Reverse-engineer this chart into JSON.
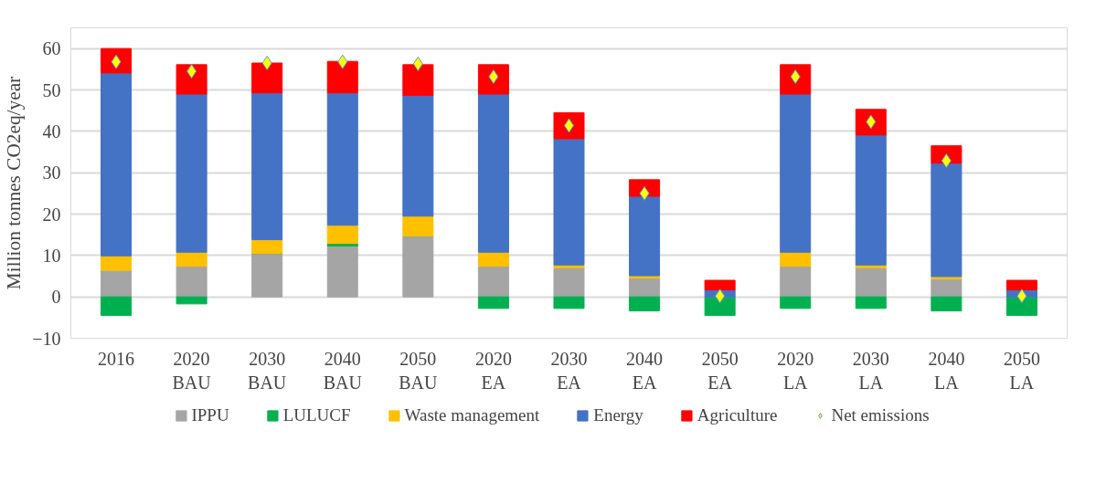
{
  "chart_data": {
    "type": "bar",
    "stacked": true,
    "ylabel": "Million tonnes CO2eq/year",
    "categories": [
      "2016",
      "2020\nBAU",
      "2030\nBAU",
      "2040\nBAU",
      "2050\nBAU",
      "2020\nEA",
      "2030\nEA",
      "2040\nEA",
      "2050\nEA",
      "2020\nLA",
      "2030\nLA",
      "2040\nLA",
      "2050\nLA"
    ],
    "series": [
      {
        "name": "IPPU",
        "color": "#a5a5a5",
        "values": [
          6.4,
          7.4,
          10.5,
          12.3,
          14.7,
          7.4,
          7.0,
          4.5,
          null,
          7.4,
          7.0,
          4.3,
          null
        ]
      },
      {
        "name": "LULUCF",
        "color": "#00b050",
        "values": [
          -4.5,
          -1.7,
          0,
          0.6,
          0,
          -2.8,
          -2.8,
          -3.4,
          -4.5,
          -2.8,
          -2.8,
          -3.4,
          -4.5
        ]
      },
      {
        "name": "Waste management",
        "color": "#ffc000",
        "values": [
          3.5,
          3.4,
          3.3,
          4.4,
          4.8,
          3.4,
          0.7,
          0.6,
          null,
          3.4,
          0.7,
          0.6,
          null
        ]
      },
      {
        "name": "Energy",
        "color": "#4472c4",
        "values": [
          44.2,
          38.2,
          35.5,
          32.0,
          29.2,
          38.2,
          30.5,
          19.2,
          1.7,
          38.2,
          31.4,
          27.4,
          1.7
        ]
      },
      {
        "name": "Agriculture",
        "color": "#ff0000",
        "values": [
          5.9,
          7.1,
          7.2,
          7.6,
          7.4,
          7.1,
          6.3,
          4.0,
          2.3,
          7.1,
          6.2,
          4.2,
          2.3
        ]
      },
      {
        "name": "Net emissions",
        "type": "scatter",
        "marker": "diamond",
        "color": "#ffff00",
        "values": [
          56.8,
          54.5,
          56.5,
          56.8,
          56.3,
          53.2,
          41.4,
          25.0,
          0.2,
          53.2,
          42.3,
          32.9,
          0.2
        ]
      }
    ],
    "ylim": [
      -10,
      65
    ],
    "yticks": [
      -10,
      0,
      10,
      20,
      30,
      40,
      50,
      60
    ],
    "grid": "y",
    "legend": "bottom"
  }
}
